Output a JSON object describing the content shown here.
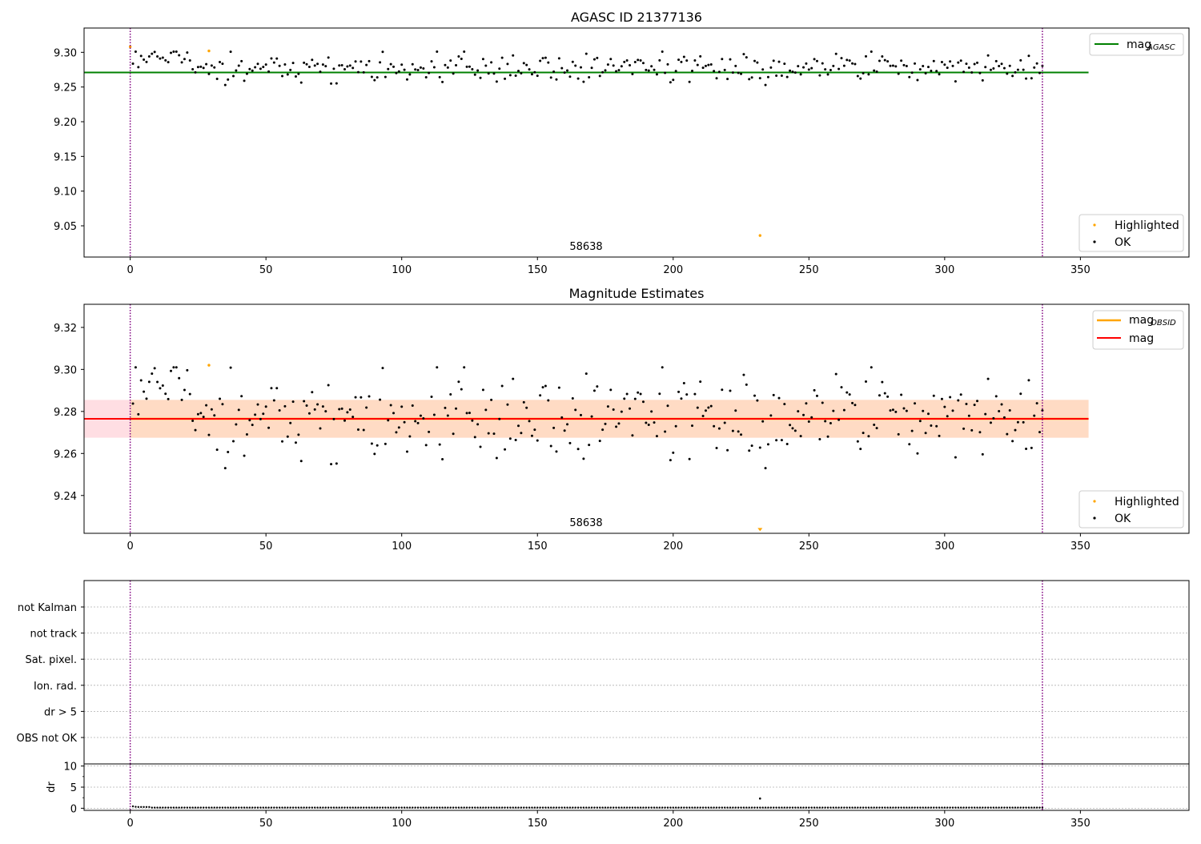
{
  "figure": {
    "colors": {
      "ok_points": "#000000",
      "highlighted_points": "#ffa500",
      "mag_agasc_line": "#008000",
      "mag_line": "#ff0000",
      "mag_obsid_line": "#ffa500",
      "mag_band": "#ffb6c1",
      "mag_obsid_band": "#ffdab9",
      "obsid_boundary": "#800080"
    }
  },
  "chart_data": [
    {
      "panel": "top",
      "type": "scatter",
      "title": "AGASC ID 21377136",
      "xlabel": "",
      "ylabel": "",
      "xlim": [
        -17,
        390
      ],
      "ylim": [
        9.005,
        9.335
      ],
      "xticks": [
        0,
        50,
        100,
        150,
        200,
        250,
        300,
        350
      ],
      "yticks": [
        9.05,
        9.1,
        9.15,
        9.2,
        9.25,
        9.3
      ],
      "ytick_labels": [
        "9.05",
        "9.10",
        "9.15",
        "9.20",
        "9.25",
        "9.30"
      ],
      "grid": false,
      "legend_upper": "top-right",
      "legend_lower": "bottom-right",
      "legend": {
        "mag_agasc_main": "mag",
        "mag_agasc_sub": "AGASC",
        "highlighted": "Highlighted",
        "ok": "OK"
      },
      "obsid_label": "58638",
      "obsid_label_x": 168,
      "obsid_boundaries": [
        0,
        336
      ],
      "mag_agasc": 9.271,
      "mag_agasc_xrange": [
        -17,
        353
      ],
      "highlighted_points": [
        {
          "x": 0,
          "y": 9.308
        },
        {
          "x": 29,
          "y": 9.302
        },
        {
          "x": 232,
          "y": 9.036
        }
      ],
      "ok_points_x_range": [
        1,
        336
      ],
      "ok_points_mean": 9.277,
      "ok_points_scatter": 0.013,
      "ok_points_count": 336
    },
    {
      "panel": "middle",
      "type": "scatter",
      "title": "Magnitude Estimates",
      "xlabel": "",
      "ylabel": "",
      "xlim": [
        -17,
        390
      ],
      "ylim": [
        9.222,
        9.331
      ],
      "xticks": [
        0,
        50,
        100,
        150,
        200,
        250,
        300,
        350
      ],
      "yticks": [
        9.24,
        9.26,
        9.28,
        9.3,
        9.32
      ],
      "ytick_labels": [
        "9.24",
        "9.26",
        "9.28",
        "9.30",
        "9.32"
      ],
      "grid": false,
      "legend_upper": "top-right",
      "legend_lower": "bottom-right",
      "legend": {
        "mag_obsid_main": "mag",
        "mag_obsid_sub": "OBSID",
        "mag": "mag",
        "highlighted": "Highlighted",
        "ok": "OK"
      },
      "obsid_label": "58638",
      "obsid_label_x": 168,
      "obsid_boundaries": [
        0,
        336
      ],
      "mag": 9.2765,
      "mag_band": [
        9.2675,
        9.2855
      ],
      "mag_xrange": [
        -17,
        353
      ],
      "mag_obsid": 9.2765,
      "mag_obsid_band": [
        9.2675,
        9.2855
      ],
      "mag_obsid_xrange": [
        0,
        353
      ],
      "highlighted_points": [
        {
          "x": 29,
          "y": 9.302
        },
        {
          "x": 232,
          "y": 9.223
        }
      ],
      "ok_points_x_range": [
        1,
        336
      ],
      "ok_points_mean": 9.277,
      "ok_points_scatter": 0.009,
      "ok_points_count": 336
    },
    {
      "panel": "flags",
      "type": "scatter",
      "title": "",
      "xlabel": "",
      "ylabel": "",
      "xlim": [
        -17,
        390
      ],
      "categories": [
        "not Kalman",
        "not track",
        "Sat. pixel.",
        "Ion. rad.",
        "dr > 5",
        "OBS not OK"
      ],
      "grid": true,
      "obsid_boundaries": [
        0,
        336
      ],
      "flagged_points": []
    },
    {
      "panel": "dr",
      "type": "scatter",
      "title": "",
      "xlabel": "",
      "ylabel": "dr",
      "xlim": [
        -17,
        390
      ],
      "ylim": [
        -0.5,
        10.5
      ],
      "xticks": [
        0,
        50,
        100,
        150,
        200,
        250,
        300,
        350
      ],
      "yticks": [
        0,
        5,
        10
      ],
      "ytick_labels": [
        "0",
        "5",
        "10"
      ],
      "grid": true,
      "obsid_boundaries": [
        0,
        336
      ],
      "dr_points_x_range": [
        1,
        336
      ],
      "dr_typical": 0.15,
      "dr_early": [
        {
          "x": 1,
          "y": 0.45
        },
        {
          "x": 2,
          "y": 0.35
        },
        {
          "x": 3,
          "y": 0.3
        },
        {
          "x": 4,
          "y": 0.3
        },
        {
          "x": 5,
          "y": 0.3
        },
        {
          "x": 6,
          "y": 0.3
        },
        {
          "x": 7,
          "y": 0.3
        }
      ],
      "dr_outliers": [
        {
          "x": 232,
          "y": 2.3
        }
      ]
    }
  ]
}
